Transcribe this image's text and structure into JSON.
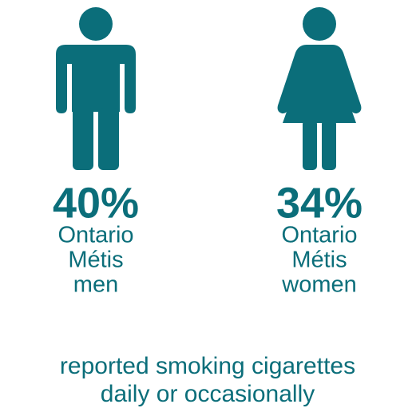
{
  "items": [
    {
      "value_label": "40%",
      "label": [
        "Ontario",
        "Métis",
        "men"
      ]
    },
    {
      "value_label": "34%",
      "label": [
        "Ontario",
        "Métis",
        "women"
      ]
    }
  ],
  "caption": [
    "reported smoking cigarettes",
    "daily or occasionally"
  ]
}
